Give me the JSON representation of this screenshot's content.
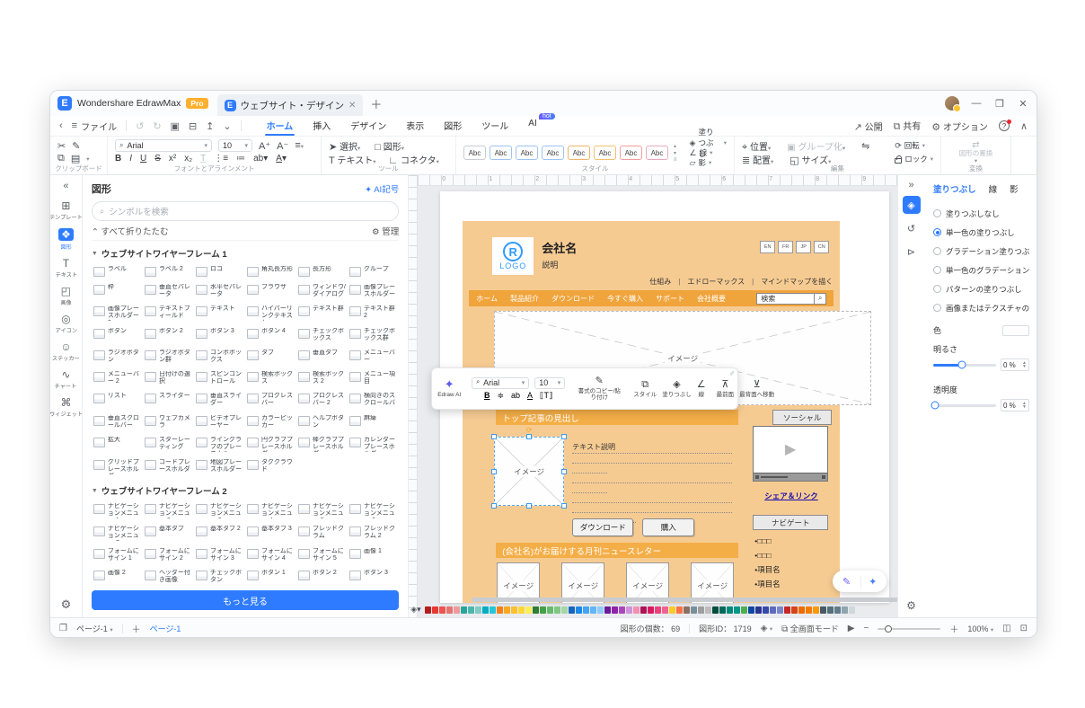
{
  "titlebar": {
    "app_title": "Wondershare EdrawMax",
    "pro_badge": "Pro",
    "doc_tab": "ウェブサイト・デザイン"
  },
  "menubar": {
    "file": "ファイル",
    "tabs": [
      "ホーム",
      "挿入",
      "デザイン",
      "表示",
      "図形",
      "ツール",
      "AI"
    ],
    "active_tab": 0,
    "ai_badge": "hot",
    "right": {
      "publish": "公開",
      "share": "共有",
      "options": "オプション"
    }
  },
  "ribbon": {
    "groups": {
      "clipboard": "クリップボード",
      "font": "フォントとアラインメント",
      "tools": "ツール",
      "style": "スタイル",
      "edit": "編集",
      "convert": "変換"
    },
    "font_name": "Arial",
    "font_size": "10",
    "select": "選択",
    "shape": "図形",
    "text": "テキスト",
    "connector": "コネクタ",
    "abc": "Abc",
    "chip_colors": [
      "#c9cdd2",
      "#9ec3f2",
      "#9ec3f2",
      "#9ec3f2",
      "#f3b26a",
      "#f3c06a",
      "#ef9d9d",
      "#e9a8c0"
    ],
    "fill": "塗りつぶし",
    "line": "線",
    "shadow": "影",
    "position": "位置",
    "group": "グループ化",
    "align": "配置",
    "size": "サイズ",
    "rotate": "回転",
    "lock": "ロック",
    "replace": "図形の置換"
  },
  "left_rail": {
    "items": [
      {
        "label": "テンプレート",
        "icon": "template-icon",
        "glyph": "⊞"
      },
      {
        "label": "図形",
        "icon": "shapes-icon",
        "glyph": "❖",
        "active": true
      },
      {
        "label": "テキスト",
        "icon": "text-icon",
        "glyph": "T"
      },
      {
        "label": "画像",
        "icon": "image-icon",
        "glyph": "◰"
      },
      {
        "label": "アイコン",
        "icon": "icons-icon",
        "glyph": "◎"
      },
      {
        "label": "ステッカー",
        "icon": "sticker-icon",
        "glyph": "☺"
      },
      {
        "label": "チャート",
        "icon": "chart-icon",
        "glyph": "∿"
      },
      {
        "label": "ウィジェット",
        "icon": "widget-icon",
        "glyph": "⌘"
      }
    ]
  },
  "shapes_panel": {
    "title": "図形",
    "ai_link": "AI記号",
    "search_placeholder": "シンボルを検索",
    "collapse_all": "すべて折りたたむ",
    "manage": "管理",
    "more_button": "もっと見る",
    "sections": [
      {
        "title": "ウェブサイトワイヤーフレーム 1",
        "items": [
          "ラベル",
          "ラベル 2",
          "ロゴ",
          "角丸長方形",
          "長方形",
          "グループ",
          "枠",
          "垂直セパレータ",
          "水平セパレータ",
          "ブラウザ",
          "ウィンドウ/ダイアログ",
          "画像プレースホルダー",
          "画像プレースホルダー 2",
          "テキストフィールド",
          "テキスト",
          "ハイパーリンクテキスト",
          "テキスト群",
          "テキスト群 2",
          "ボタン",
          "ボタン 2",
          "ボタン 3",
          "ボタン 4",
          "チェックボックス",
          "チェックボックス群",
          "ラジオボタン",
          "ラジオボタン群",
          "コンボボックス",
          "タブ",
          "垂直タブ",
          "メニューバー",
          "メニューバー 2",
          "日付けの選択",
          "スピンコントロール",
          "検索ボックス",
          "検索ボックス 2",
          "メニュー項目",
          "リスト",
          "スライダー",
          "垂直スライダー",
          "プログレスバー",
          "プログレスバー 2",
          "横向きのスクロールバー",
          "垂直スクロールバー",
          "ウェブカメラ",
          "ビデオプレーヤー",
          "カラーピッカー",
          "ヘルプボタン",
          "麻痺",
          "拡大",
          "スターレーティング",
          "ライングラフのプレースホル...",
          "円グラフプレースホルダー",
          "棒グラフプレースホルダー",
          "カレンダープレースホルダー",
          "グリッドプレースホルダー",
          "コードプレースホルダー",
          "地図プレースホルダー",
          "タグクラウド"
        ]
      },
      {
        "title": "ウェブサイトワイヤーフレーム 2",
        "items": [
          "ナビゲーションメニュー 1",
          "ナビゲーションメニュー 2",
          "ナビゲーションメニュー 3",
          "ナビゲーションメニュー 4",
          "ナビゲーションメニュー 5",
          "ナビゲーションメニュー 6",
          "ナビゲーションメニュー 7",
          "基本タブ",
          "基本タブ 2",
          "基本タブ 3",
          "ブレッドクラム",
          "ブレッドクラム 2",
          "フォームにサイン 1",
          "フォームにサイン 2",
          "フォームにサイン 3",
          "フォームにサイン 4",
          "フォームにサイン 5",
          "画像 1",
          "画像 2",
          "ヘッダー付き画像",
          "チェックボタン",
          "ボタン 1",
          "ボタン 2",
          "ボタン 3"
        ]
      }
    ]
  },
  "canvas": {
    "ruler_numbers": [
      "0",
      "1",
      "2",
      "3",
      "4",
      "5",
      "6",
      "7",
      "8",
      "9"
    ],
    "wireframe": {
      "logo_mark": "R",
      "logo_text": "LOGO",
      "company": "会社名",
      "description": "説明",
      "lang_buttons": [
        "EN",
        "FR",
        "JP",
        "CN"
      ],
      "top_links": [
        "仕組み",
        "エドローマックス",
        "マインドマップを描く"
      ],
      "nav_items": [
        "ホーム",
        "製品紹介",
        "ダウンロード",
        "今すぐ購入",
        "サポート",
        "会社概要"
      ],
      "search_value": "検索",
      "image_label": "イメージ",
      "top_article_bar": "トップ記事の見出し",
      "text_desc": "テキスト説明",
      "download_btn": "ダウンロード",
      "buy_btn": "購入",
      "newsletter_bar": "(会社名)がお届けする月刊ニュースレター",
      "social_btn": "ソーシャル",
      "share_link": "シェア＆リンク",
      "navigate_btn": "ナビゲート",
      "bullets": [
        "•□□□",
        "•□□□",
        "•項目名",
        "•項目名"
      ]
    },
    "float_toolbar": {
      "edraw_ai": "Edraw AI",
      "font": "Arial",
      "size": "10",
      "format_paint": "書式のコピー/貼り付け",
      "style": "スタイル",
      "fill": "塗りつぶし",
      "line": "線",
      "front": "最前面",
      "back": "最背面へ移動"
    },
    "palette_colors": [
      "#b71c1c",
      "#e53935",
      "#ef5350",
      "#e57373",
      "#ef9a9a",
      "#26a69a",
      "#4db6ac",
      "#80cbc4",
      "#00acc1",
      "#26c6da",
      "#f57f17",
      "#f9a825",
      "#fbc02d",
      "#fdd835",
      "#ffee58",
      "#2e7d32",
      "#43a047",
      "#66bb6a",
      "#81c784",
      "#a5d6a7",
      "#1565c0",
      "#1e88e5",
      "#42a5f5",
      "#64b5f6",
      "#90caf9",
      "#6a1b9a",
      "#8e24aa",
      "#ab47bc",
      "#ce93d8",
      "#f48fb1",
      "#ad1457",
      "#d81b60",
      "#ec407a",
      "#f06292",
      "#ffca28",
      "#ff7043",
      "#8d6e63",
      "#78909c",
      "#9e9e9e",
      "#bdbdbd",
      "#004d40",
      "#00695c",
      "#00897b",
      "#009688",
      "#4caf50",
      "#0d47a1",
      "#283593",
      "#3949ab",
      "#5c6bc0",
      "#7986cb",
      "#c62828",
      "#d84315",
      "#ef6c00",
      "#f57c00",
      "#ff9800",
      "#455a64",
      "#546e7a",
      "#607d8b",
      "#90a4ae",
      "#cfd8dc"
    ]
  },
  "right_panel": {
    "tabs": [
      "塗りつぶし",
      "線",
      "影"
    ],
    "active_tab": 0,
    "options": [
      "塗りつぶしなし",
      "単一色の塗りつぶし",
      "グラデーション塗りつぶし",
      "単一色のグラデーション塗りつぶし",
      "パターンの塗りつぶし",
      "画像またはテクスチャの塗りつぶし"
    ],
    "selected_option": 1,
    "color_label": "色",
    "brightness_label": "明るさ",
    "brightness_value": "0 %",
    "opacity_label": "透明度",
    "opacity_value": "0 %"
  },
  "status_bar": {
    "page_dropdown": "ページ-1",
    "page_tab": "ページ-1",
    "shape_count": "図形の個数： 69",
    "shape_id": "図形ID： 1719",
    "fullscreen": "全画面モード",
    "zoom": "100%"
  },
  "colors": {
    "accent": "#2f7bff",
    "wf_outer": "#f6cb92",
    "wf_orange": "#f0a43c",
    "wf_bar": "#f4ae47",
    "pro": "#ffb02e"
  }
}
